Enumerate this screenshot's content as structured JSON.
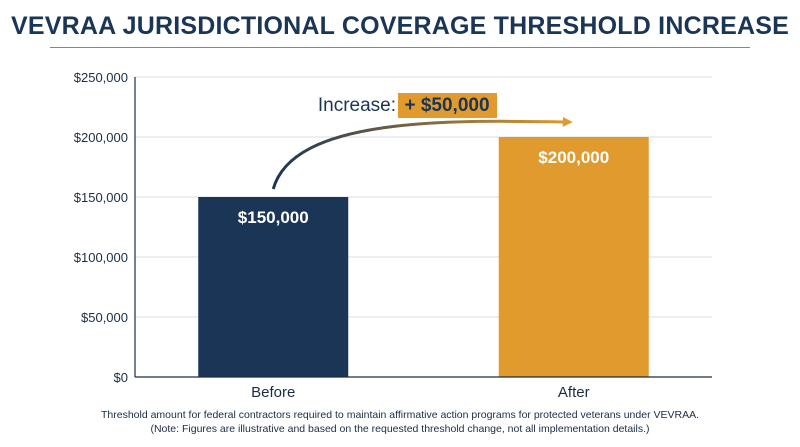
{
  "title": "VEVRAA JURISDICTIONAL COVERAGE THRESHOLD INCREASE",
  "caption": {
    "line1": "Threshold amount for federal contractors required to maintain affirmative action programs for protected veterans under VEVRAA.",
    "line2": "(Note: Figures are illustrative and based on the requested threshold change, not all implementation details.)"
  },
  "chart_data": {
    "type": "bar",
    "categories": [
      "Before",
      "After"
    ],
    "values": [
      150000,
      200000
    ],
    "value_labels": [
      "$150,000",
      "$200,000"
    ],
    "bar_colors": [
      "#1b3556",
      "#e09a2e"
    ],
    "ylim": [
      0,
      250000
    ],
    "yticks": [
      0,
      50000,
      100000,
      150000,
      200000,
      250000
    ],
    "ytick_labels": [
      "$0",
      "$50,000",
      "$100,000",
      "$150,000",
      "$200,000",
      "$250,000"
    ],
    "grid": true,
    "annotation": {
      "prefix": "Increase:",
      "value": "+ $50,000",
      "from": "Before",
      "to": "After"
    }
  }
}
